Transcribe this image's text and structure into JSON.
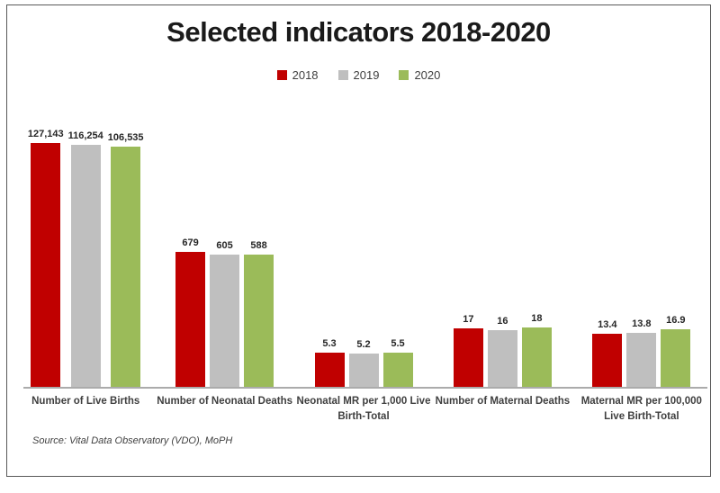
{
  "title": "Selected indicators 2018-2020",
  "legend": [
    {
      "label": "2018",
      "color": "#C00000"
    },
    {
      "label": "2019",
      "color": "#BFBFBF"
    },
    {
      "label": "2020",
      "color": "#9BBB59"
    }
  ],
  "source": "Source: Vital Data Observatory (VDO), MoPH",
  "chart_data": {
    "type": "bar",
    "title": "Selected indicators 2018-2020",
    "scale": "log10",
    "gridlines": false,
    "value_axis_visible": false,
    "legend_position": "top",
    "categories": [
      "Number of Live Births",
      "Number of Neonatal Deaths",
      "Neonatal MR per 1,000 Live\nBirth-Total",
      "Number of Maternal Deaths",
      "Maternal MR per 100,000\nLive Birth-Total"
    ],
    "series": [
      {
        "name": "2018",
        "color": "#C00000",
        "values": [
          127143,
          679,
          5.3,
          17,
          13.4
        ],
        "labels": [
          "127,143",
          "679",
          "5.3",
          "17",
          "13.4"
        ]
      },
      {
        "name": "2019",
        "color": "#BFBFBF",
        "values": [
          116254,
          605,
          5.2,
          16,
          13.8
        ],
        "labels": [
          "116,254",
          "605",
          "5.2",
          "16",
          "13.8"
        ]
      },
      {
        "name": "2020",
        "color": "#9BBB59",
        "values": [
          106535,
          588,
          5.5,
          18,
          16.9
        ],
        "labels": [
          "106,535",
          "588",
          "5.5",
          "18",
          "16.9"
        ]
      }
    ]
  }
}
